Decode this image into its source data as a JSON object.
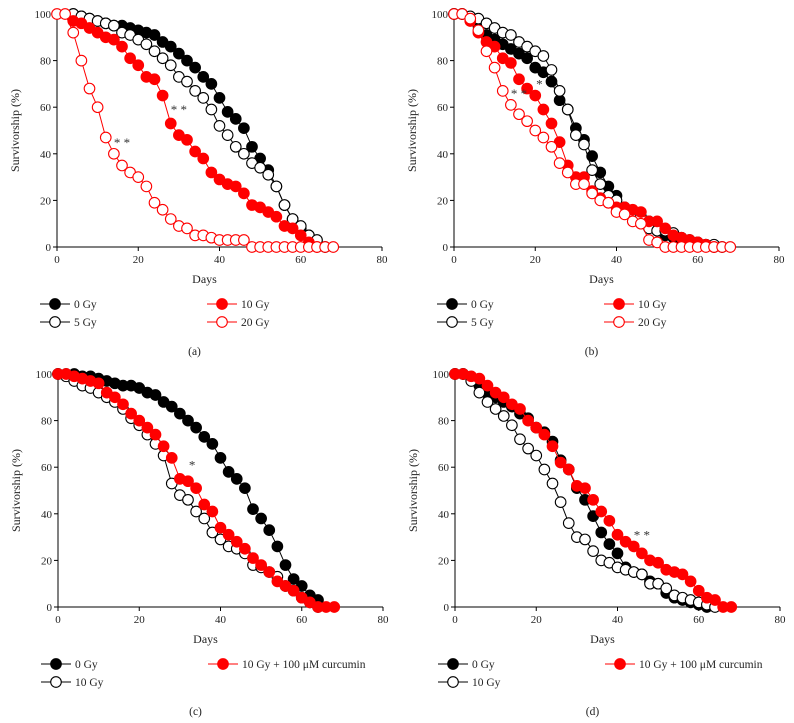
{
  "colors": {
    "black": "#000000",
    "red": "#ff0000"
  },
  "chart_data": [
    {
      "type": "line",
      "panel": "a",
      "caption": "(a)",
      "xlabel": "Days",
      "ylabel": "Survivorship (%)",
      "xlim": [
        0,
        80
      ],
      "ylim": [
        0,
        100
      ],
      "xticks": [
        "0",
        "20",
        "40",
        "60",
        "80"
      ],
      "yticks": [
        "0",
        "20",
        "40",
        "60",
        "80",
        "100"
      ],
      "legend": [
        "0 Gy",
        "5 Gy",
        "10 Gy",
        "20 Gy"
      ],
      "series": [
        {
          "name": "0 Gy",
          "marker": "filled",
          "color": "#000000",
          "start_day": 4,
          "step": 2,
          "values": [
            100,
            99,
            98,
            97,
            96,
            95,
            95,
            94,
            93,
            92,
            91,
            88,
            86,
            83,
            80,
            77,
            73,
            70,
            64,
            58,
            55,
            51,
            43,
            38,
            33,
            26,
            18,
            12,
            8,
            5,
            2
          ]
        },
        {
          "name": "5 Gy",
          "marker": "open",
          "color": "#000000",
          "start_day": 4,
          "step": 2,
          "values": [
            100,
            99,
            98,
            97,
            96,
            95,
            92,
            91,
            89,
            87,
            84,
            81,
            78,
            73,
            71,
            67,
            64,
            59,
            52,
            48,
            43,
            40,
            36,
            34,
            31,
            26,
            18,
            12,
            9,
            5,
            3,
            0
          ]
        },
        {
          "name": "10 Gy",
          "marker": "filled",
          "color": "#ff0000",
          "start_day": 4,
          "step": 2,
          "values": [
            97,
            96,
            94,
            92,
            90,
            89,
            86,
            81,
            78,
            73,
            72,
            65,
            53,
            48,
            46,
            41,
            38,
            32,
            29,
            27,
            26,
            23,
            18,
            17,
            15,
            13,
            9,
            8,
            5,
            2,
            0
          ]
        },
        {
          "name": "20 Gy",
          "marker": "open",
          "color": "#ff0000",
          "start_day": 0,
          "step": 2,
          "values": [
            100,
            100,
            92,
            80,
            68,
            60,
            47,
            40,
            35,
            32,
            30,
            26,
            19,
            16,
            12,
            9,
            8,
            5,
            5,
            4,
            3,
            3,
            3,
            3,
            0,
            0,
            0,
            0,
            0,
            0,
            0,
            0,
            0,
            0,
            0
          ]
        }
      ],
      "annotations": [
        {
          "text": "* *",
          "x": 30,
          "y": 57
        },
        {
          "text": "* *",
          "x": 16,
          "y": 43
        }
      ]
    },
    {
      "type": "line",
      "panel": "b",
      "caption": "(b)",
      "xlabel": "Days",
      "ylabel": "Survivorship (%)",
      "xlim": [
        0,
        80
      ],
      "ylim": [
        0,
        100
      ],
      "xticks": [
        "0",
        "20",
        "40",
        "60",
        "80"
      ],
      "yticks": [
        "0",
        "20",
        "40",
        "60",
        "80",
        "100"
      ],
      "legend": [
        "0 Gy",
        "5 Gy",
        "10 Gy",
        "20 Gy"
      ],
      "series": [
        {
          "name": "0 Gy",
          "marker": "filled",
          "color": "#000000",
          "start_day": 0,
          "step": 2,
          "values": [
            100,
            100,
            98,
            95,
            91,
            89,
            87,
            85,
            83,
            81,
            77,
            75,
            71,
            63,
            59,
            51,
            46,
            39,
            32,
            26,
            22,
            17,
            15,
            13,
            11,
            9,
            5,
            4,
            3,
            2,
            1,
            1,
            0
          ]
        },
        {
          "name": "5 Gy",
          "marker": "open",
          "color": "#000000",
          "start_day": 0,
          "step": 2,
          "values": [
            100,
            100,
            99,
            98,
            96,
            94,
            92,
            91,
            88,
            86,
            84,
            82,
            76,
            67,
            59,
            48,
            44,
            33,
            27,
            22,
            20,
            16,
            14,
            13,
            8,
            7,
            7,
            6,
            4,
            3,
            2,
            1,
            1,
            0
          ]
        },
        {
          "name": "10 Gy",
          "marker": "filled",
          "color": "#ff0000",
          "start_day": 4,
          "step": 2,
          "values": [
            97,
            92,
            88,
            86,
            81,
            79,
            72,
            68,
            65,
            59,
            53,
            45,
            35,
            30,
            30,
            24,
            21,
            19,
            17,
            17,
            16,
            15,
            11,
            11,
            8,
            5,
            4,
            3,
            2,
            1,
            0
          ]
        },
        {
          "name": "20 Gy",
          "marker": "open",
          "color": "#ff0000",
          "start_day": 0,
          "step": 2,
          "values": [
            100,
            100,
            98,
            93,
            84,
            77,
            67,
            61,
            57,
            54,
            50,
            47,
            43,
            36,
            32,
            27,
            27,
            23,
            20,
            19,
            15,
            14,
            11,
            10,
            3,
            2,
            0,
            0,
            0,
            0,
            0,
            0,
            0,
            0,
            0
          ]
        }
      ],
      "annotations": [
        {
          "text": "* *",
          "x": 16,
          "y": 64
        },
        {
          "text": "*",
          "x": 21,
          "y": 68
        }
      ]
    },
    {
      "type": "line",
      "panel": "c",
      "caption": "(c)",
      "xlabel": "Days",
      "ylabel": "Survivorship (%)",
      "xlim": [
        0,
        80
      ],
      "ylim": [
        0,
        100
      ],
      "xticks": [
        "0",
        "20",
        "40",
        "60",
        "80"
      ],
      "yticks": [
        "0",
        "20",
        "40",
        "60",
        "80",
        "100"
      ],
      "legend": [
        "0 Gy",
        "10 Gy",
        "10 Gy + 100 μM curcumin"
      ],
      "series": [
        {
          "name": "0 Gy",
          "marker": "filled",
          "color": "#000000",
          "start_day": 0,
          "step": 2,
          "values": [
            100,
            100,
            100,
            99,
            99,
            98,
            97,
            96,
            95,
            95,
            94,
            92,
            91,
            88,
            86,
            83,
            80,
            77,
            73,
            70,
            64,
            58,
            55,
            51,
            42,
            38,
            33,
            26,
            18,
            12,
            9,
            5,
            3
          ]
        },
        {
          "name": "10 Gy",
          "marker": "open",
          "color": "#000000",
          "start_day": 0,
          "step": 2,
          "values": [
            100,
            99,
            97,
            95,
            94,
            92,
            90,
            88,
            85,
            81,
            78,
            74,
            70,
            65,
            53,
            48,
            46,
            41,
            38,
            32,
            29,
            26,
            25,
            23,
            18,
            17,
            15,
            13,
            9,
            7,
            4,
            2,
            0
          ]
        },
        {
          "name": "10 Gy + 100 μM curcumin",
          "marker": "filled",
          "color": "#ff0000",
          "start_day": 0,
          "step": 2,
          "values": [
            100,
            100,
            99,
            98,
            97,
            96,
            92,
            90,
            87,
            83,
            80,
            77,
            74,
            69,
            64,
            55,
            54,
            51,
            44,
            41,
            34,
            31,
            28,
            25,
            21,
            18,
            15,
            11,
            9,
            7,
            4,
            2,
            0,
            0,
            0
          ]
        }
      ],
      "annotations": [
        {
          "text": "*",
          "x": 33,
          "y": 59
        }
      ]
    },
    {
      "type": "line",
      "panel": "d",
      "caption": "(d)",
      "xlabel": "Days",
      "ylabel": "Survivorship (%)",
      "xlim": [
        0,
        80
      ],
      "ylim": [
        0,
        100
      ],
      "xticks": [
        "0",
        "20",
        "40",
        "60",
        "80"
      ],
      "yticks": [
        "0",
        "20",
        "40",
        "60",
        "80",
        "100"
      ],
      "legend": [
        "0 Gy",
        "10 Gy",
        "10 Gy + 100 μM curcumin"
      ],
      "series": [
        {
          "name": "0 Gy",
          "marker": "filled",
          "color": "#000000",
          "start_day": 0,
          "step": 2,
          "values": [
            100,
            100,
            98,
            95,
            92,
            90,
            88,
            86,
            83,
            81,
            77,
            75,
            71,
            63,
            59,
            51,
            46,
            39,
            32,
            27,
            23,
            17,
            15,
            14,
            11,
            10,
            6,
            4,
            3,
            2,
            1,
            0
          ]
        },
        {
          "name": "10 Gy",
          "marker": "open",
          "color": "#000000",
          "start_day": 0,
          "step": 2,
          "values": [
            100,
            100,
            97,
            92,
            88,
            85,
            82,
            78,
            72,
            68,
            65,
            59,
            53,
            45,
            36,
            30,
            29,
            24,
            20,
            19,
            17,
            16,
            15,
            14,
            10,
            10,
            8,
            5,
            4,
            3,
            2,
            1,
            0
          ]
        },
        {
          "name": "10 Gy + 100 μM curcumin",
          "marker": "filled",
          "color": "#ff0000",
          "start_day": 0,
          "step": 2,
          "values": [
            100,
            100,
            99,
            98,
            95,
            92,
            90,
            87,
            85,
            80,
            77,
            74,
            69,
            62,
            59,
            52,
            51,
            46,
            41,
            37,
            31,
            28,
            26,
            23,
            20,
            19,
            16,
            15,
            14,
            11,
            7,
            4,
            3,
            0,
            0
          ]
        }
      ],
      "annotations": [
        {
          "text": "* *",
          "x": 46,
          "y": 29
        }
      ]
    }
  ]
}
